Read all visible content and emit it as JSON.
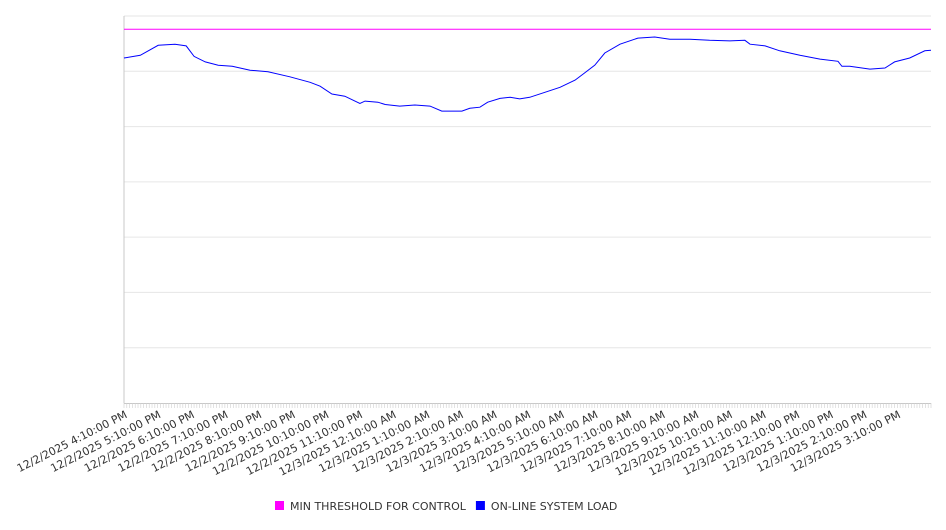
{
  "chart_data": {
    "type": "line",
    "title": "",
    "xlabel": "",
    "ylabel": "",
    "x_unit": "minutes since 12/2/2025 4:10:00 PM",
    "xlim": [
      0,
      1440
    ],
    "ylim": [
      0,
      700
    ],
    "y_gridlines": [
      100,
      200,
      300,
      400,
      500,
      600,
      700
    ],
    "grid": true,
    "legend_position": "bottom-center",
    "tick_labels": [
      "12/2/2025 4:10:00 PM",
      "12/2/2025 5:10:00 PM",
      "12/2/2025 6:10:00 PM",
      "12/2/2025 7:10:00 PM",
      "12/2/2025 8:10:00 PM",
      "12/2/2025 9:10:00 PM",
      "12/2/2025 10:10:00 PM",
      "12/2/2025 11:10:00 PM",
      "12/3/2025 12:10:00 AM",
      "12/3/2025 1:10:00 AM",
      "12/3/2025 2:10:00 AM",
      "12/3/2025 3:10:00 AM",
      "12/3/2025 4:10:00 AM",
      "12/3/2025 5:10:00 AM",
      "12/3/2025 6:10:00 AM",
      "12/3/2025 7:10:00 AM",
      "12/3/2025 8:10:00 AM",
      "12/3/2025 9:10:00 AM",
      "12/3/2025 10:10:00 AM",
      "12/3/2025 11:10:00 AM",
      "12/3/2025 12:10:00 PM",
      "12/3/2025 1:10:00 PM",
      "12/3/2025 2:10:00 PM",
      "12/3/2025 3:10:00 PM"
    ],
    "series": [
      {
        "name": "MIN THRESHOLD FOR CONTROL",
        "color": "#ff00ff",
        "x": [
          0,
          1440
        ],
        "values": [
          676,
          676
        ]
      },
      {
        "name": "ON-LINE SYSTEM LOAD",
        "color": "#0000ff",
        "x": [
          0,
          29,
          61,
          91,
          111,
          125,
          145,
          168,
          193,
          225,
          257,
          296,
          332,
          350,
          371,
          394,
          421,
          430,
          453,
          466,
          492,
          519,
          546,
          567,
          603,
          617,
          635,
          649,
          671,
          689,
          706,
          724,
          751,
          778,
          805,
          822,
          840,
          858,
          885,
          917,
          947,
          974,
          1010,
          1045,
          1081,
          1108,
          1117,
          1144,
          1170,
          1206,
          1242,
          1274,
          1281,
          1295,
          1331,
          1358,
          1375,
          1402,
          1429,
          1440
        ],
        "values": [
          624,
          629,
          647,
          649,
          646,
          627,
          617,
          611,
          609,
          602,
          599,
          590,
          580,
          573,
          559,
          555,
          542,
          546,
          544,
          540,
          537,
          539,
          537,
          528,
          528,
          533,
          535,
          544,
          551,
          553,
          550,
          553,
          562,
          571,
          584,
          597,
          611,
          633,
          649,
          660,
          662,
          658,
          658,
          656,
          655,
          656,
          649,
          646,
          637,
          629,
          622,
          618,
          609,
          609,
          604,
          606,
          617,
          624,
          637,
          638
        ]
      }
    ]
  }
}
